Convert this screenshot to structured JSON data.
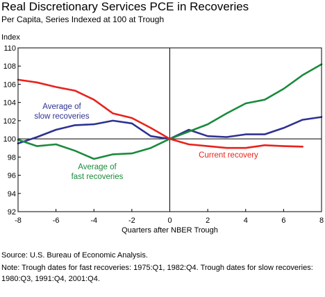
{
  "title": "Real Discretionary Services PCE in Recoveries",
  "subtitle": "Per Capita, Series Indexed at 100 at Trough",
  "source": "Source: U.S. Bureau of Economic Analysis.",
  "note": "Note: Trough dates for fast recoveries: 1975:Q1, 1982:Q4. Trough dates for slow recoveries: 1980:Q3, 1991:Q4, 2001:Q4.",
  "chart_data": {
    "type": "line",
    "ylabel": "Index",
    "xlabel": "Quarters after NBER Trough",
    "xlim": [
      -8,
      8
    ],
    "ylim": [
      92,
      110
    ],
    "xticks": [
      -8,
      -6,
      -4,
      -2,
      0,
      2,
      4,
      6,
      8
    ],
    "yticks": [
      92,
      94,
      96,
      98,
      100,
      102,
      104,
      106,
      108,
      110
    ],
    "grid": false,
    "series": [
      {
        "name": "Average of slow recoveries",
        "label_lines": [
          "Average of",
          "slow recoveries"
        ],
        "color": "#2e3192",
        "x": [
          -8,
          -7,
          -6,
          -5,
          -4,
          -3,
          -2,
          -1,
          0,
          1,
          2,
          3,
          4,
          5,
          6,
          7,
          8
        ],
        "values": [
          99.5,
          100.2,
          101.0,
          101.5,
          101.6,
          102.0,
          101.7,
          100.3,
          100.0,
          101.0,
          100.3,
          100.2,
          100.5,
          100.5,
          101.2,
          102.1,
          102.4
        ]
      },
      {
        "name": "Average of fast recoveries",
        "label_lines": [
          "Average of",
          "fast recoveries"
        ],
        "color": "#1a8a3c",
        "x": [
          -8,
          -7,
          -6,
          -5,
          -4,
          -3,
          -2,
          -1,
          0,
          1,
          2,
          3,
          4,
          5,
          6,
          7,
          8
        ],
        "values": [
          99.9,
          99.2,
          99.4,
          98.7,
          97.8,
          98.3,
          98.4,
          99.0,
          100.0,
          100.8,
          101.6,
          102.8,
          103.9,
          104.3,
          105.5,
          107.0,
          108.2
        ]
      },
      {
        "name": "Current recovery",
        "label_lines": [
          "Current recovery"
        ],
        "color": "#e8221c",
        "x": [
          -8,
          -7,
          -6,
          -5,
          -4,
          -3,
          -2,
          -1,
          0,
          1,
          2,
          3,
          4,
          5,
          6,
          7
        ],
        "values": [
          106.5,
          106.2,
          105.7,
          105.3,
          104.3,
          102.8,
          102.3,
          101.2,
          100.0,
          99.4,
          99.2,
          99.0,
          99.0,
          99.3,
          99.2,
          99.15
        ]
      }
    ]
  }
}
